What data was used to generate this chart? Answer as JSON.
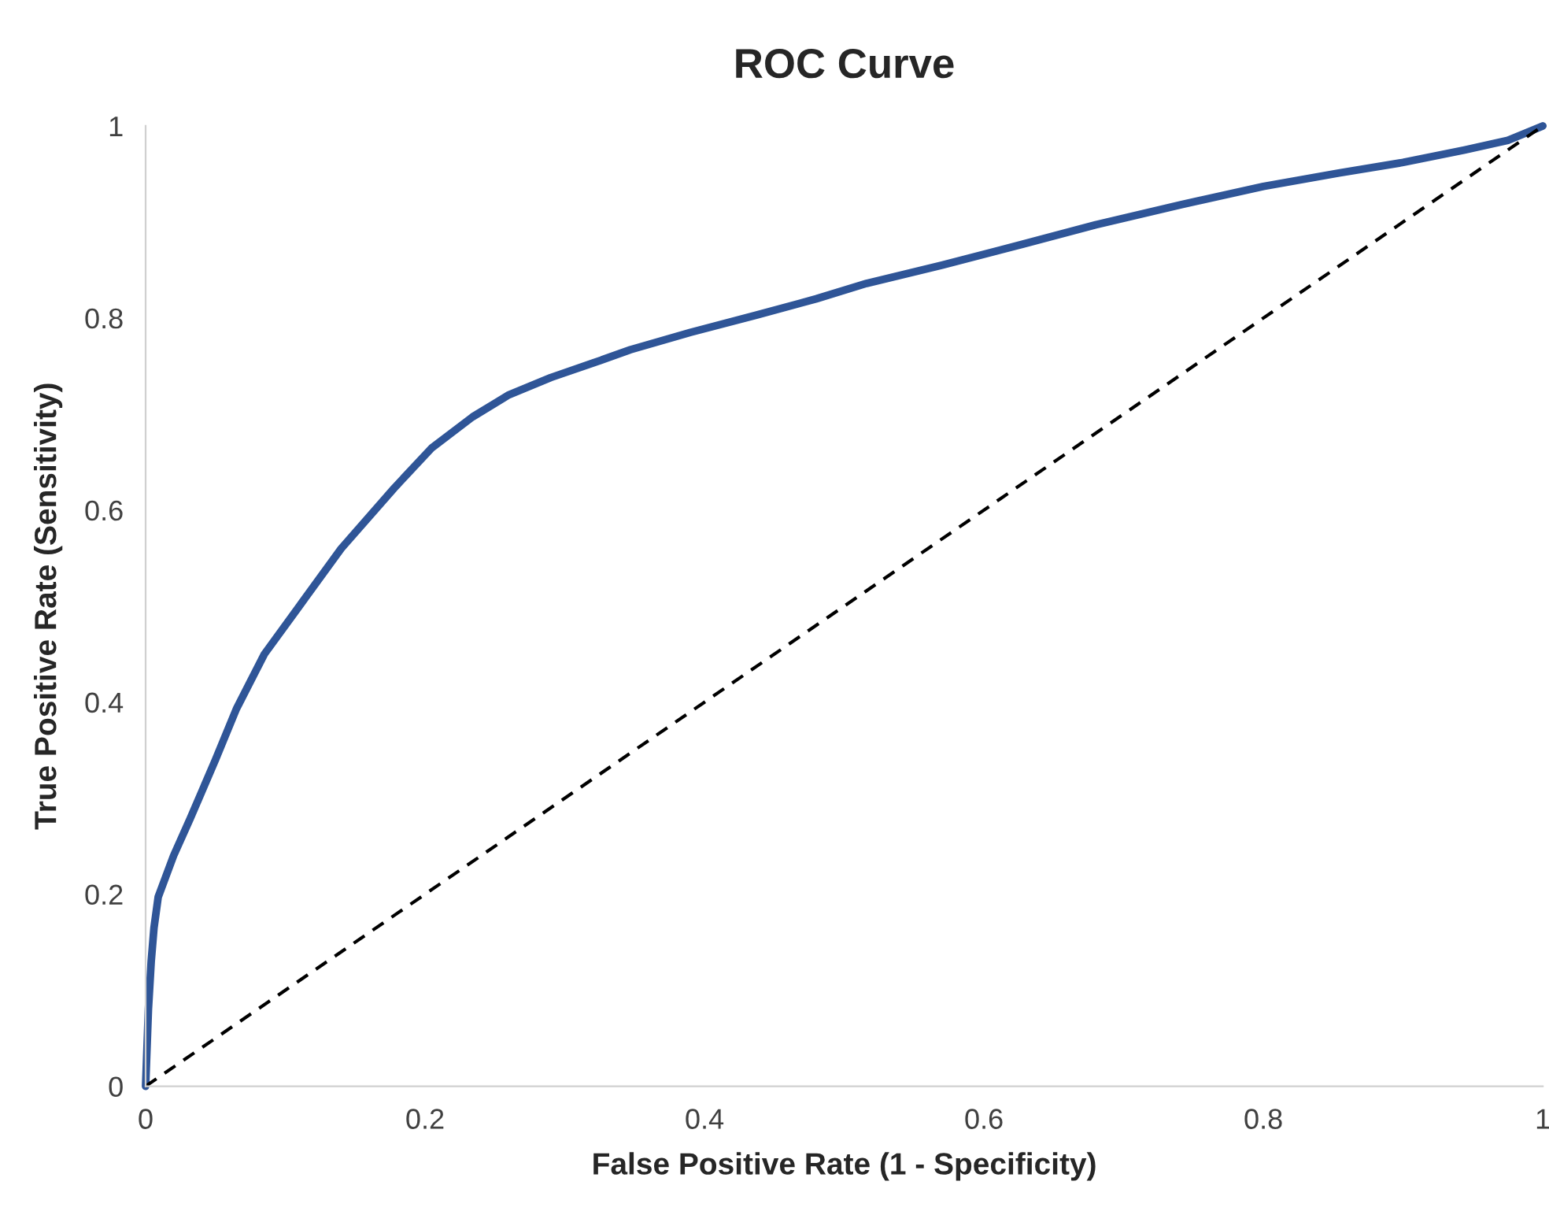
{
  "chart_data": {
    "type": "line",
    "title": "ROC Curve",
    "xlabel": "False Positive Rate (1 - Specificity)",
    "ylabel": "True Positive Rate (Sensitivity)",
    "xlim": [
      0,
      1
    ],
    "ylim": [
      0,
      1
    ],
    "xticks": [
      0,
      0.2,
      0.4,
      0.6,
      0.8,
      1
    ],
    "yticks": [
      0,
      0.2,
      0.4,
      0.6,
      0.8,
      1
    ],
    "grid": false,
    "legend": false,
    "marker": "none",
    "series": [
      {
        "color": "#2f5597",
        "line_style": "solid",
        "x": [
          0,
          0.002,
          0.004,
          0.006,
          0.009,
          0.02,
          0.032,
          0.05,
          0.065,
          0.085,
          0.11,
          0.14,
          0.178,
          0.205,
          0.234,
          0.26,
          0.29,
          0.32,
          0.347,
          0.39,
          0.437,
          0.48,
          0.516,
          0.57,
          0.628,
          0.68,
          0.741,
          0.8,
          0.854,
          0.9,
          0.944,
          0.975,
          1
        ],
        "values": [
          0,
          0.08,
          0.13,
          0.165,
          0.197,
          0.24,
          0.279,
          0.34,
          0.393,
          0.45,
          0.5,
          0.56,
          0.623,
          0.665,
          0.697,
          0.72,
          0.738,
          0.753,
          0.767,
          0.785,
          0.803,
          0.82,
          0.836,
          0.855,
          0.877,
          0.897,
          0.918,
          0.937,
          0.951,
          0.962,
          0.975,
          0.985,
          1
        ]
      },
      {
        "color": "#000000",
        "line_style": "dashed",
        "x": [
          0,
          1
        ],
        "values": [
          0,
          1
        ]
      }
    ]
  }
}
